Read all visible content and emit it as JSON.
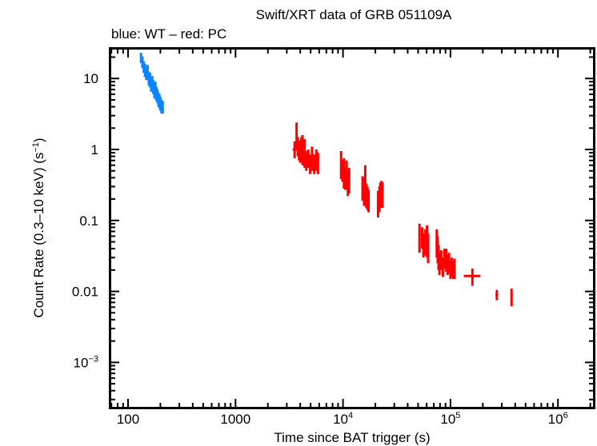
{
  "chart_data": {
    "type": "scatter",
    "title": "Swift/XRT data of GRB 051109A",
    "subtitle": "blue: WT – red: PC",
    "xlabel": "Time since BAT trigger (s)",
    "ylabel": "Count Rate (0.3–10 keV) (s",
    "ylabel_sup": "−1",
    "ylabel_end": ")",
    "xscale": "log",
    "yscale": "log",
    "xlim": [
      62,
      2200000
    ],
    "ylim": [
      0.00023,
      27
    ],
    "grid": false,
    "legend": "none",
    "x_ticks": [
      {
        "value": 100,
        "base": "100",
        "exp": ""
      },
      {
        "value": 1000,
        "base": "1000",
        "exp": ""
      },
      {
        "value": 10000,
        "base": "10",
        "exp": "4"
      },
      {
        "value": 100000,
        "base": "10",
        "exp": "5"
      },
      {
        "value": 1000000,
        "base": "10",
        "exp": "6"
      }
    ],
    "y_ticks": [
      {
        "value": 10,
        "base": "10",
        "exp": ""
      },
      {
        "value": 1,
        "base": "1",
        "exp": ""
      },
      {
        "value": 0.1,
        "base": "0.1",
        "exp": ""
      },
      {
        "value": 0.01,
        "base": "0.01",
        "exp": ""
      },
      {
        "value": 0.001,
        "base": "10",
        "exp": "−3"
      }
    ],
    "series": [
      {
        "name": "WT",
        "color": "#0a84ff",
        "points": [
          {
            "t": 132,
            "r": 19.5,
            "lo": 16.5,
            "hi": 23.0,
            "tlo": 130,
            "thi": 134
          },
          {
            "t": 136,
            "r": 17.0,
            "lo": 14.0,
            "hi": 20.5,
            "tlo": 134,
            "thi": 138
          },
          {
            "t": 140,
            "r": 14.5,
            "lo": 12.0,
            "hi": 17.5,
            "tlo": 138,
            "thi": 142
          },
          {
            "t": 144,
            "r": 13.0,
            "lo": 10.5,
            "hi": 16.0,
            "tlo": 142,
            "thi": 146
          },
          {
            "t": 148,
            "r": 11.5,
            "lo": 9.5,
            "hi": 14.0,
            "tlo": 146,
            "thi": 150
          },
          {
            "t": 152,
            "r": 12.5,
            "lo": 10.0,
            "hi": 15.5,
            "tlo": 150,
            "thi": 154
          },
          {
            "t": 156,
            "r": 10.0,
            "lo": 8.0,
            "hi": 12.5,
            "tlo": 154,
            "thi": 158
          },
          {
            "t": 160,
            "r": 9.5,
            "lo": 7.5,
            "hi": 12.0,
            "tlo": 158,
            "thi": 162
          },
          {
            "t": 164,
            "r": 8.0,
            "lo": 6.5,
            "hi": 10.0,
            "tlo": 162,
            "thi": 166
          },
          {
            "t": 168,
            "r": 8.5,
            "lo": 6.8,
            "hi": 10.8,
            "tlo": 166,
            "thi": 170
          },
          {
            "t": 172,
            "r": 7.5,
            "lo": 6.0,
            "hi": 9.5,
            "tlo": 170,
            "thi": 174
          },
          {
            "t": 176,
            "r": 6.5,
            "lo": 5.2,
            "hi": 8.2,
            "tlo": 174,
            "thi": 178
          },
          {
            "t": 180,
            "r": 7.2,
            "lo": 5.8,
            "hi": 9.0,
            "tlo": 178,
            "thi": 182
          },
          {
            "t": 184,
            "r": 6.0,
            "lo": 4.8,
            "hi": 7.6,
            "tlo": 182,
            "thi": 186
          },
          {
            "t": 188,
            "r": 5.6,
            "lo": 4.5,
            "hi": 7.0,
            "tlo": 186,
            "thi": 190
          },
          {
            "t": 192,
            "r": 5.0,
            "lo": 4.0,
            "hi": 6.3,
            "tlo": 190,
            "thi": 194
          },
          {
            "t": 196,
            "r": 4.8,
            "lo": 3.8,
            "hi": 6.0,
            "tlo": 194,
            "thi": 198
          },
          {
            "t": 200,
            "r": 4.4,
            "lo": 3.5,
            "hi": 5.5,
            "tlo": 198,
            "thi": 202
          },
          {
            "t": 205,
            "r": 4.0,
            "lo": 3.2,
            "hi": 5.0,
            "tlo": 202,
            "thi": 208
          },
          {
            "t": 210,
            "r": 3.9,
            "lo": 3.2,
            "hi": 4.8,
            "tlo": 208,
            "thi": 213
          }
        ]
      },
      {
        "name": "PC",
        "color": "#ff0000",
        "points": [
          {
            "t": 3550,
            "r": 1.0,
            "lo": 0.75,
            "hi": 1.3,
            "tlo": 3400,
            "thi": 3700
          },
          {
            "t": 3700,
            "r": 1.4,
            "lo": 1.0,
            "hi": 2.4,
            "tlo": 3650,
            "thi": 3750
          },
          {
            "t": 3800,
            "r": 1.1,
            "lo": 0.8,
            "hi": 1.5,
            "tlo": 3750,
            "thi": 3850
          },
          {
            "t": 3900,
            "r": 0.95,
            "lo": 0.7,
            "hi": 1.3,
            "tlo": 3850,
            "thi": 3950
          },
          {
            "t": 4000,
            "r": 1.0,
            "lo": 0.65,
            "hi": 1.35,
            "tlo": 3950,
            "thi": 4050
          },
          {
            "t": 4100,
            "r": 1.1,
            "lo": 0.75,
            "hi": 1.5,
            "tlo": 4050,
            "thi": 4150
          },
          {
            "t": 4200,
            "r": 0.85,
            "lo": 0.6,
            "hi": 1.6,
            "tlo": 4150,
            "thi": 4250
          },
          {
            "t": 4300,
            "r": 0.9,
            "lo": 0.6,
            "hi": 1.2,
            "tlo": 4250,
            "thi": 4350
          },
          {
            "t": 4400,
            "r": 0.75,
            "lo": 0.55,
            "hi": 1.4,
            "tlo": 4350,
            "thi": 4450
          },
          {
            "t": 4550,
            "r": 0.7,
            "lo": 0.5,
            "hi": 0.95,
            "tlo": 4450,
            "thi": 4650
          },
          {
            "t": 4750,
            "r": 0.75,
            "lo": 0.55,
            "hi": 1.0,
            "tlo": 4650,
            "thi": 4850
          },
          {
            "t": 4950,
            "r": 0.65,
            "lo": 0.45,
            "hi": 0.85,
            "tlo": 4850,
            "thi": 5050
          },
          {
            "t": 5150,
            "r": 0.7,
            "lo": 0.5,
            "hi": 1.1,
            "tlo": 5050,
            "thi": 5250
          },
          {
            "t": 5400,
            "r": 0.6,
            "lo": 0.45,
            "hi": 0.85,
            "tlo": 5250,
            "thi": 5550
          },
          {
            "t": 5650,
            "r": 0.75,
            "lo": 0.5,
            "hi": 1.0,
            "tlo": 5550,
            "thi": 5750
          },
          {
            "t": 5850,
            "r": 0.65,
            "lo": 0.45,
            "hi": 0.9,
            "tlo": 5750,
            "thi": 5950
          },
          {
            "t": 9600,
            "r": 0.6,
            "lo": 0.38,
            "hi": 0.95,
            "tlo": 9450,
            "thi": 9750
          },
          {
            "t": 9900,
            "r": 0.5,
            "lo": 0.35,
            "hi": 0.7,
            "tlo": 9750,
            "thi": 10050
          },
          {
            "t": 10200,
            "r": 0.42,
            "lo": 0.28,
            "hi": 0.75,
            "tlo": 10050,
            "thi": 10350
          },
          {
            "t": 10500,
            "r": 0.38,
            "lo": 0.27,
            "hi": 0.55,
            "tlo": 10350,
            "thi": 10650
          },
          {
            "t": 10800,
            "r": 0.4,
            "lo": 0.27,
            "hi": 0.7,
            "tlo": 10650,
            "thi": 10950
          },
          {
            "t": 11100,
            "r": 0.33,
            "lo": 0.22,
            "hi": 0.5,
            "tlo": 10950,
            "thi": 11250
          },
          {
            "t": 11400,
            "r": 0.36,
            "lo": 0.24,
            "hi": 0.55,
            "tlo": 11250,
            "thi": 11550
          },
          {
            "t": 15200,
            "r": 0.28,
            "lo": 0.19,
            "hi": 0.42,
            "tlo": 14900,
            "thi": 15500
          },
          {
            "t": 15700,
            "r": 0.24,
            "lo": 0.16,
            "hi": 0.4,
            "tlo": 15500,
            "thi": 15900
          },
          {
            "t": 16100,
            "r": 0.3,
            "lo": 0.2,
            "hi": 0.6,
            "tlo": 15900,
            "thi": 16300
          },
          {
            "t": 16500,
            "r": 0.22,
            "lo": 0.15,
            "hi": 0.33,
            "tlo": 16300,
            "thi": 16700
          },
          {
            "t": 16900,
            "r": 0.2,
            "lo": 0.14,
            "hi": 0.3,
            "tlo": 16700,
            "thi": 17100
          },
          {
            "t": 17300,
            "r": 0.19,
            "lo": 0.13,
            "hi": 0.27,
            "tlo": 17100,
            "thi": 17500
          },
          {
            "t": 21200,
            "r": 0.17,
            "lo": 0.11,
            "hi": 0.26,
            "tlo": 20800,
            "thi": 21600
          },
          {
            "t": 21800,
            "r": 0.2,
            "lo": 0.13,
            "hi": 0.3,
            "tlo": 21600,
            "thi": 22000
          },
          {
            "t": 22200,
            "r": 0.22,
            "lo": 0.15,
            "hi": 0.34,
            "tlo": 22000,
            "thi": 22400
          },
          {
            "t": 22700,
            "r": 0.25,
            "lo": 0.16,
            "hi": 0.36,
            "tlo": 22400,
            "thi": 23000
          },
          {
            "t": 23300,
            "r": 0.23,
            "lo": 0.15,
            "hi": 0.35,
            "tlo": 23000,
            "thi": 23600
          },
          {
            "t": 51500,
            "r": 0.055,
            "lo": 0.035,
            "hi": 0.09,
            "tlo": 51000,
            "thi": 52000
          },
          {
            "t": 54500,
            "r": 0.06,
            "lo": 0.04,
            "hi": 0.08,
            "tlo": 54000,
            "thi": 55000
          },
          {
            "t": 56000,
            "r": 0.045,
            "lo": 0.03,
            "hi": 0.065,
            "tlo": 55500,
            "thi": 56500
          },
          {
            "t": 58500,
            "r": 0.05,
            "lo": 0.032,
            "hi": 0.075,
            "tlo": 58000,
            "thi": 59000
          },
          {
            "t": 60500,
            "r": 0.055,
            "lo": 0.03,
            "hi": 0.085,
            "tlo": 60000,
            "thi": 61000
          },
          {
            "t": 62000,
            "r": 0.04,
            "lo": 0.025,
            "hi": 0.065,
            "tlo": 61500,
            "thi": 62500
          },
          {
            "t": 74500,
            "r": 0.05,
            "lo": 0.03,
            "hi": 0.075,
            "tlo": 74000,
            "thi": 75000
          },
          {
            "t": 76000,
            "r": 0.04,
            "lo": 0.025,
            "hi": 0.06,
            "tlo": 75500,
            "thi": 76500
          },
          {
            "t": 77500,
            "r": 0.03,
            "lo": 0.02,
            "hi": 0.045,
            "tlo": 77000,
            "thi": 78000
          },
          {
            "t": 79000,
            "r": 0.025,
            "lo": 0.017,
            "hi": 0.035,
            "tlo": 78500,
            "thi": 79500
          },
          {
            "t": 82000,
            "r": 0.028,
            "lo": 0.02,
            "hi": 0.038,
            "tlo": 81000,
            "thi": 83000
          },
          {
            "t": 85000,
            "r": 0.024,
            "lo": 0.016,
            "hi": 0.03,
            "tlo": 84000,
            "thi": 86000
          },
          {
            "t": 88000,
            "r": 0.03,
            "lo": 0.021,
            "hi": 0.04,
            "tlo": 87000,
            "thi": 89000
          },
          {
            "t": 91000,
            "r": 0.028,
            "lo": 0.019,
            "hi": 0.04,
            "tlo": 90000,
            "thi": 92000
          },
          {
            "t": 94000,
            "r": 0.024,
            "lo": 0.017,
            "hi": 0.033,
            "tlo": 93000,
            "thi": 95000
          },
          {
            "t": 97000,
            "r": 0.026,
            "lo": 0.018,
            "hi": 0.035,
            "tlo": 96000,
            "thi": 98000
          },
          {
            "t": 100000,
            "r": 0.021,
            "lo": 0.015,
            "hi": 0.028,
            "tlo": 99000,
            "thi": 101000
          },
          {
            "t": 103000,
            "r": 0.022,
            "lo": 0.016,
            "hi": 0.03,
            "tlo": 102000,
            "thi": 104000
          },
          {
            "t": 106000,
            "r": 0.02,
            "lo": 0.015,
            "hi": 0.027,
            "tlo": 105000,
            "thi": 107000
          },
          {
            "t": 109000,
            "r": 0.021,
            "lo": 0.015,
            "hi": 0.029,
            "tlo": 108000,
            "thi": 110000
          },
          {
            "t": 160000,
            "r": 0.0165,
            "lo": 0.012,
            "hi": 0.021,
            "tlo": 133000,
            "thi": 190000
          },
          {
            "t": 270000,
            "r": 0.009,
            "lo": 0.0075,
            "hi": 0.0105,
            "tlo": 262000,
            "thi": 278000
          },
          {
            "t": 370000,
            "r": 0.0085,
            "lo": 0.0062,
            "hi": 0.011,
            "tlo": 366000,
            "thi": 374000
          }
        ]
      }
    ]
  }
}
